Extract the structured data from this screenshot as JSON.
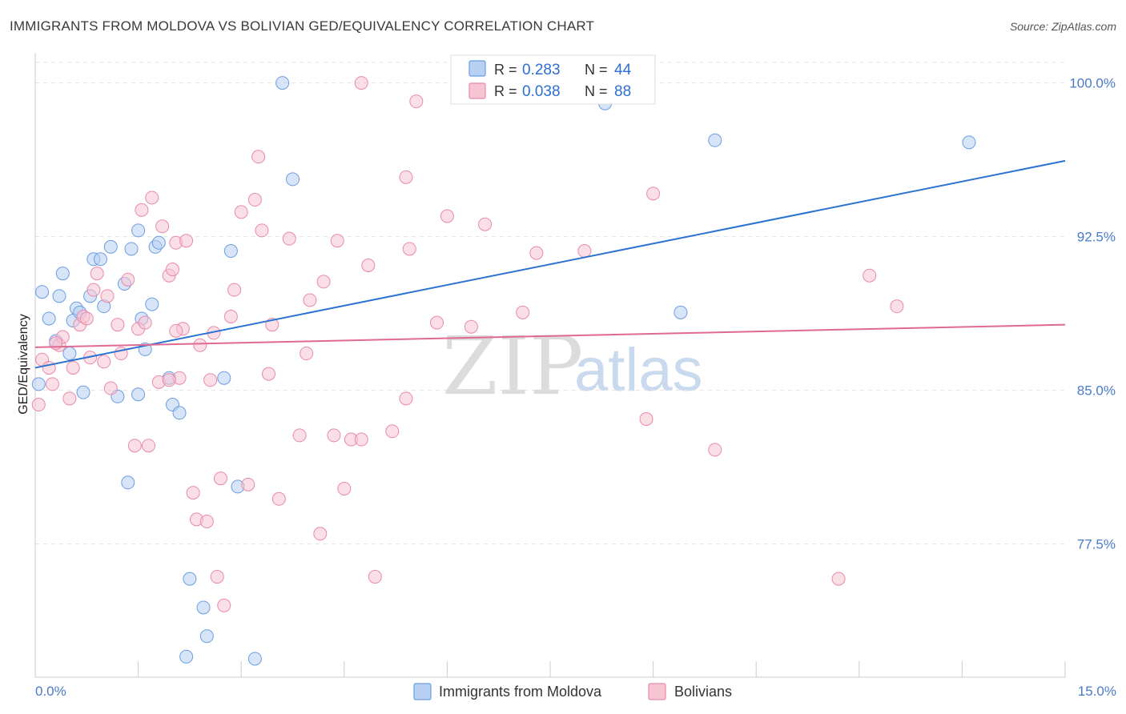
{
  "chart_data": {
    "type": "scatter",
    "title": "IMMIGRANTS FROM MOLDOVA VS BOLIVIAN GED/EQUIVALENCY CORRELATION CHART",
    "source": "Source: ZipAtlas.com",
    "ylabel": "GED/Equivalency",
    "xlabel": "",
    "xlim": [
      0,
      15
    ],
    "ylim": [
      71,
      101
    ],
    "x_tick_labels": [
      "0.0%",
      "15.0%"
    ],
    "y_ticks": [
      77.5,
      85.0,
      92.5,
      100.0
    ],
    "y_tick_labels": [
      "77.5%",
      "85.0%",
      "92.5%",
      "100.0%"
    ],
    "grid": true,
    "legend_position": "top-center",
    "watermark": {
      "zip": "ZIP",
      "atlas": "atlas"
    },
    "stats": [
      {
        "r_label": "R = ",
        "r_value": "0.283",
        "n_label": "N = ",
        "n_value": "44"
      },
      {
        "r_label": "R = ",
        "r_value": "0.038",
        "n_label": "N = ",
        "n_value": "88"
      }
    ],
    "series": [
      {
        "name": "Immigrants from Moldova",
        "color": "#6a9ee0",
        "fill": "#b8d0f2",
        "trend_color": "#2b73d0",
        "trend": [
          [
            0,
            86.1
          ],
          [
            15,
            96.2
          ]
        ],
        "points": [
          [
            0.1,
            89.8
          ],
          [
            0.2,
            88.5
          ],
          [
            0.3,
            87.4
          ],
          [
            0.35,
            89.6
          ],
          [
            0.4,
            90.7
          ],
          [
            0.5,
            86.8
          ],
          [
            0.55,
            88.4
          ],
          [
            0.6,
            89.0
          ],
          [
            0.65,
            88.8
          ],
          [
            0.7,
            84.9
          ],
          [
            0.8,
            89.6
          ],
          [
            0.85,
            91.4
          ],
          [
            0.95,
            91.4
          ],
          [
            1.0,
            89.1
          ],
          [
            1.1,
            92.0
          ],
          [
            1.2,
            84.7
          ],
          [
            1.3,
            90.2
          ],
          [
            1.35,
            80.5
          ],
          [
            1.4,
            91.9
          ],
          [
            1.5,
            84.8
          ],
          [
            1.5,
            92.8
          ],
          [
            1.55,
            88.5
          ],
          [
            1.6,
            87.0
          ],
          [
            1.7,
            89.2
          ],
          [
            1.75,
            92.0
          ],
          [
            1.8,
            92.2
          ],
          [
            1.95,
            85.6
          ],
          [
            2.0,
            84.3
          ],
          [
            2.1,
            83.9
          ],
          [
            2.2,
            72.0
          ],
          [
            2.25,
            75.8
          ],
          [
            2.45,
            74.4
          ],
          [
            2.5,
            73.0
          ],
          [
            2.75,
            85.6
          ],
          [
            2.85,
            91.8
          ],
          [
            2.95,
            80.3
          ],
          [
            3.2,
            71.9
          ],
          [
            3.6,
            100.0
          ],
          [
            3.75,
            95.3
          ],
          [
            0.05,
            85.3
          ],
          [
            8.3,
            99.0
          ],
          [
            9.4,
            88.8
          ],
          [
            9.9,
            97.2
          ],
          [
            13.6,
            97.1
          ]
        ]
      },
      {
        "name": "Bolivians",
        "color": "#e88aaa",
        "fill": "#f7c4d3",
        "trend_color": "#e06a92",
        "trend": [
          [
            0,
            87.1
          ],
          [
            15,
            88.2
          ]
        ],
        "points": [
          [
            0.05,
            84.3
          ],
          [
            0.1,
            86.5
          ],
          [
            0.2,
            86.1
          ],
          [
            0.25,
            85.3
          ],
          [
            0.35,
            87.2
          ],
          [
            0.4,
            87.6
          ],
          [
            0.5,
            84.6
          ],
          [
            0.55,
            86.1
          ],
          [
            0.65,
            88.2
          ],
          [
            0.7,
            88.6
          ],
          [
            0.8,
            86.6
          ],
          [
            0.85,
            89.9
          ],
          [
            0.9,
            90.7
          ],
          [
            1.0,
            86.4
          ],
          [
            1.05,
            89.6
          ],
          [
            1.1,
            85.1
          ],
          [
            1.2,
            88.2
          ],
          [
            1.25,
            86.8
          ],
          [
            1.35,
            90.4
          ],
          [
            1.45,
            82.3
          ],
          [
            1.5,
            88.0
          ],
          [
            1.55,
            93.8
          ],
          [
            1.6,
            88.3
          ],
          [
            1.65,
            82.3
          ],
          [
            1.7,
            94.4
          ],
          [
            1.8,
            85.4
          ],
          [
            1.85,
            93.0
          ],
          [
            1.95,
            90.6
          ],
          [
            2.0,
            90.9
          ],
          [
            2.05,
            92.2
          ],
          [
            2.1,
            85.6
          ],
          [
            2.15,
            88.0
          ],
          [
            2.2,
            92.3
          ],
          [
            2.3,
            80.0
          ],
          [
            2.35,
            78.7
          ],
          [
            2.4,
            87.2
          ],
          [
            2.5,
            78.6
          ],
          [
            2.55,
            85.5
          ],
          [
            2.6,
            87.8
          ],
          [
            2.65,
            75.9
          ],
          [
            2.7,
            80.7
          ],
          [
            2.75,
            74.5
          ],
          [
            2.85,
            88.6
          ],
          [
            2.9,
            89.9
          ],
          [
            3.0,
            93.7
          ],
          [
            3.1,
            80.4
          ],
          [
            3.2,
            94.3
          ],
          [
            3.25,
            96.4
          ],
          [
            3.3,
            92.8
          ],
          [
            3.4,
            85.8
          ],
          [
            3.45,
            88.2
          ],
          [
            3.55,
            79.7
          ],
          [
            3.7,
            92.4
          ],
          [
            3.85,
            82.8
          ],
          [
            3.95,
            86.8
          ],
          [
            4.0,
            89.4
          ],
          [
            4.15,
            78.0
          ],
          [
            4.2,
            90.3
          ],
          [
            4.35,
            82.8
          ],
          [
            4.4,
            92.3
          ],
          [
            4.5,
            80.2
          ],
          [
            4.6,
            82.6
          ],
          [
            4.75,
            82.6
          ],
          [
            4.85,
            91.1
          ],
          [
            4.95,
            75.9
          ],
          [
            4.75,
            100.0
          ],
          [
            5.2,
            83.0
          ],
          [
            5.4,
            84.6
          ],
          [
            5.4,
            95.4
          ],
          [
            5.45,
            91.9
          ],
          [
            5.55,
            99.1
          ],
          [
            5.85,
            88.3
          ],
          [
            6.0,
            93.5
          ],
          [
            6.35,
            88.1
          ],
          [
            6.55,
            93.1
          ],
          [
            7.1,
            88.8
          ],
          [
            7.3,
            91.7
          ],
          [
            8.0,
            91.8
          ],
          [
            8.9,
            83.6
          ],
          [
            9.0,
            94.6
          ],
          [
            9.9,
            82.1
          ],
          [
            11.7,
            75.8
          ],
          [
            12.15,
            90.6
          ],
          [
            12.55,
            89.1
          ],
          [
            0.3,
            87.3
          ],
          [
            1.95,
            85.5
          ],
          [
            2.05,
            87.9
          ],
          [
            0.75,
            88.5
          ]
        ]
      }
    ]
  }
}
